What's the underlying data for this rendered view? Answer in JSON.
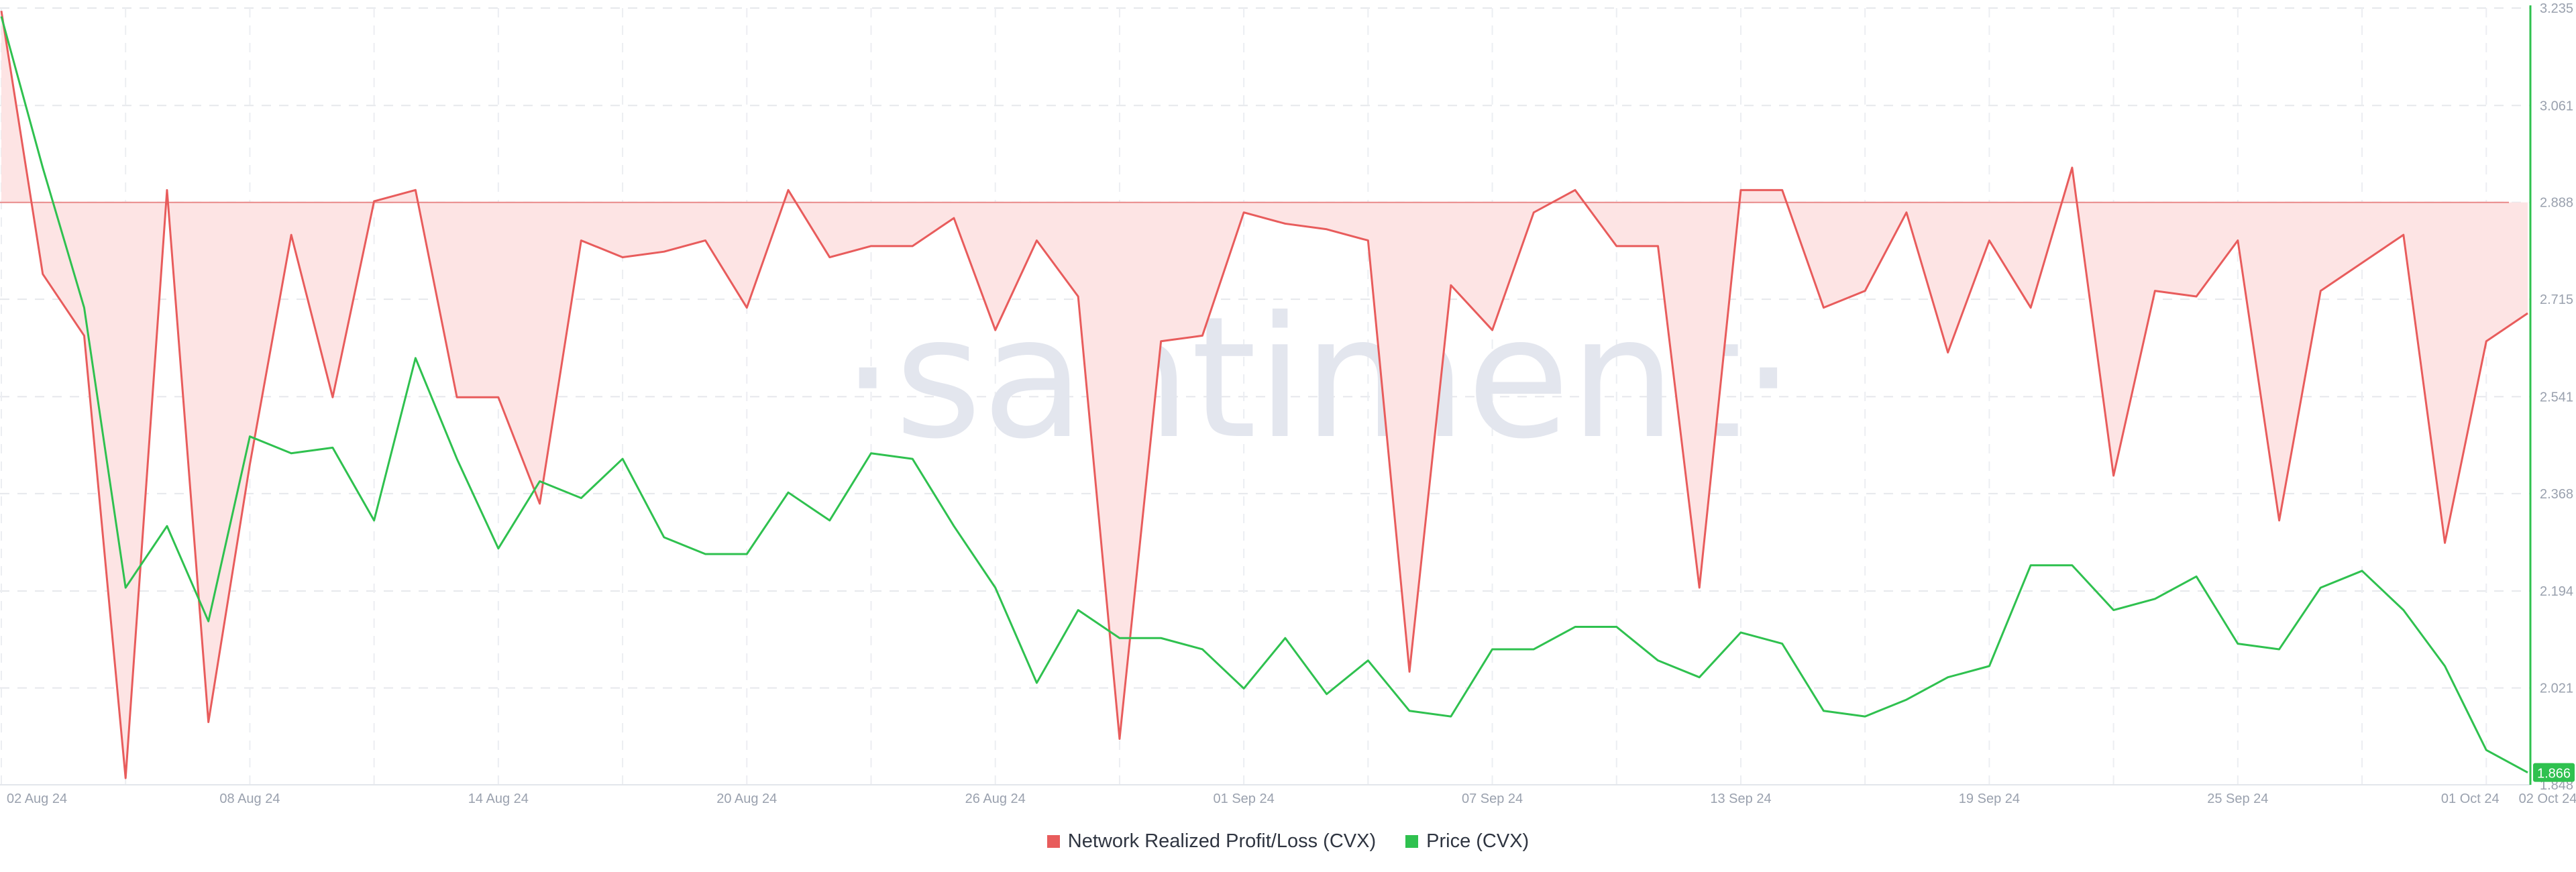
{
  "watermark": "·santiment·",
  "legend": [
    {
      "label": "Network Realized Profit/Loss (CVX)",
      "color": "#e85c5c"
    },
    {
      "label": "Price (CVX)",
      "color": "#2fc14f"
    }
  ],
  "current_price_badge": "1.866",
  "chart_data": {
    "type": "line",
    "grid": true,
    "x_ticks": [
      "02 Aug 24",
      "08 Aug 24",
      "14 Aug 24",
      "20 Aug 24",
      "26 Aug 24",
      "01 Sep 24",
      "07 Sep 24",
      "13 Sep 24",
      "19 Sep 24",
      "25 Sep 24",
      "01 Oct 24",
      "02 Oct 24"
    ],
    "right_axis": {
      "ticks": [
        "3.235",
        "3.061",
        "2.888",
        "2.715",
        "2.541",
        "2.368",
        "2.194",
        "2.021",
        "1.848"
      ],
      "ylim": [
        1.848,
        3.235
      ]
    },
    "series": [
      {
        "name": "Network Realized Profit/Loss (CVX)",
        "color": "#e85c5c",
        "fill": "#fde4e4",
        "baseline": 2.888,
        "axis": "hidden",
        "x": [
          "2024-08-02",
          "2024-08-03",
          "2024-08-04",
          "2024-08-05",
          "2024-08-06",
          "2024-08-07",
          "2024-08-08",
          "2024-08-09",
          "2024-08-10",
          "2024-08-11",
          "2024-08-12",
          "2024-08-13",
          "2024-08-14",
          "2024-08-15",
          "2024-08-16",
          "2024-08-17",
          "2024-08-18",
          "2024-08-19",
          "2024-08-20",
          "2024-08-21",
          "2024-08-22",
          "2024-08-23",
          "2024-08-24",
          "2024-08-25",
          "2024-08-26",
          "2024-08-27",
          "2024-08-28",
          "2024-08-29",
          "2024-08-30",
          "2024-08-31",
          "2024-09-01",
          "2024-09-02",
          "2024-09-03",
          "2024-09-04",
          "2024-09-05",
          "2024-09-06",
          "2024-09-07",
          "2024-09-08",
          "2024-09-09",
          "2024-09-10",
          "2024-09-11",
          "2024-09-12",
          "2024-09-13",
          "2024-09-14",
          "2024-09-15",
          "2024-09-16",
          "2024-09-17",
          "2024-09-18",
          "2024-09-19",
          "2024-09-20",
          "2024-09-21",
          "2024-09-22",
          "2024-09-23",
          "2024-09-24",
          "2024-09-25",
          "2024-09-26",
          "2024-09-27",
          "2024-09-28",
          "2024-09-29",
          "2024-09-30",
          "2024-10-01",
          "2024-10-02"
        ],
        "values": [
          3.23,
          2.76,
          2.65,
          1.86,
          2.91,
          1.96,
          2.42,
          2.83,
          2.54,
          2.89,
          2.91,
          2.54,
          2.54,
          2.35,
          2.82,
          2.79,
          2.8,
          2.82,
          2.7,
          2.91,
          2.79,
          2.81,
          2.81,
          2.86,
          2.66,
          2.82,
          2.72,
          1.93,
          2.64,
          2.65,
          2.87,
          2.85,
          2.84,
          2.82,
          2.05,
          2.74,
          2.66,
          2.87,
          2.91,
          2.81,
          2.81,
          2.2,
          2.91,
          2.91,
          2.7,
          2.73,
          2.87,
          2.62,
          2.82,
          2.7,
          2.95,
          2.4,
          2.73,
          2.72,
          2.82,
          2.32,
          2.73,
          2.78,
          2.83,
          2.28,
          2.64,
          2.69
        ]
      },
      {
        "name": "Price (CVX)",
        "color": "#2fc14f",
        "axis": "right",
        "x": [
          "2024-08-02",
          "2024-08-03",
          "2024-08-04",
          "2024-08-05",
          "2024-08-06",
          "2024-08-07",
          "2024-08-08",
          "2024-08-09",
          "2024-08-10",
          "2024-08-11",
          "2024-08-12",
          "2024-08-13",
          "2024-08-14",
          "2024-08-15",
          "2024-08-16",
          "2024-08-17",
          "2024-08-18",
          "2024-08-19",
          "2024-08-20",
          "2024-08-21",
          "2024-08-22",
          "2024-08-23",
          "2024-08-24",
          "2024-08-25",
          "2024-08-26",
          "2024-08-27",
          "2024-08-28",
          "2024-08-29",
          "2024-08-30",
          "2024-08-31",
          "2024-09-01",
          "2024-09-02",
          "2024-09-03",
          "2024-09-04",
          "2024-09-05",
          "2024-09-06",
          "2024-09-07",
          "2024-09-08",
          "2024-09-09",
          "2024-09-10",
          "2024-09-11",
          "2024-09-12",
          "2024-09-13",
          "2024-09-14",
          "2024-09-15",
          "2024-09-16",
          "2024-09-17",
          "2024-09-18",
          "2024-09-19",
          "2024-09-20",
          "2024-09-21",
          "2024-09-22",
          "2024-09-23",
          "2024-09-24",
          "2024-09-25",
          "2024-09-26",
          "2024-09-27",
          "2024-09-28",
          "2024-09-29",
          "2024-09-30",
          "2024-10-01",
          "2024-10-02"
        ],
        "values": [
          3.22,
          2.95,
          2.7,
          2.2,
          2.31,
          2.14,
          2.47,
          2.44,
          2.45,
          2.32,
          2.61,
          2.43,
          2.27,
          2.39,
          2.36,
          2.43,
          2.29,
          2.26,
          2.26,
          2.37,
          2.32,
          2.44,
          2.43,
          2.31,
          2.2,
          2.03,
          2.16,
          2.11,
          2.11,
          2.09,
          2.02,
          2.11,
          2.01,
          2.07,
          1.98,
          1.97,
          2.09,
          2.09,
          2.13,
          2.13,
          2.07,
          2.04,
          2.12,
          2.1,
          1.98,
          1.97,
          2.0,
          2.04,
          2.06,
          2.24,
          2.24,
          2.16,
          2.18,
          2.22,
          2.1,
          2.09,
          2.2,
          2.23,
          2.16,
          2.06,
          1.91,
          1.87
        ]
      }
    ]
  }
}
